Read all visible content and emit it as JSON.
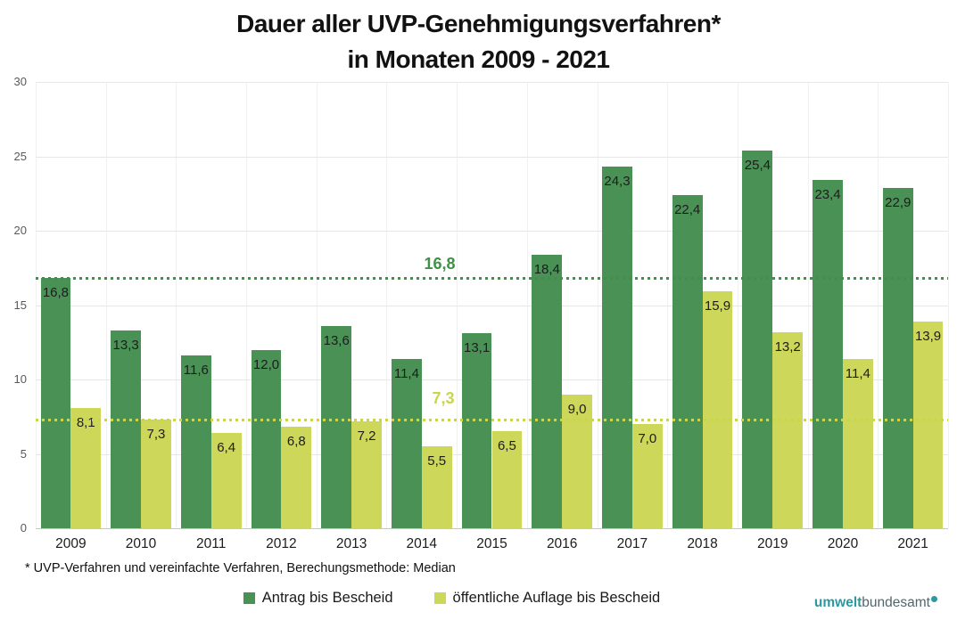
{
  "chart_data": {
    "type": "bar",
    "title_line1": "Dauer aller UVP-Genehmigungsverfahren*",
    "title_line2": "in Monaten 2009 - 2021",
    "categories": [
      2009,
      2010,
      2011,
      2012,
      2013,
      2014,
      2015,
      2016,
      2017,
      2018,
      2019,
      2020,
      2021
    ],
    "series": [
      {
        "name": "Antrag bis Bescheid",
        "color": "#4a9156",
        "values": [
          16.8,
          13.3,
          11.6,
          12.0,
          13.6,
          11.4,
          13.1,
          18.4,
          24.3,
          22.4,
          25.4,
          23.4,
          22.9
        ],
        "labels": [
          "16,8",
          "13,3",
          "11,6",
          "12,0",
          "13,6",
          "11,4",
          "13,1",
          "18,4",
          "24,3",
          "22,4",
          "25,4",
          "23,4",
          "22,9"
        ]
      },
      {
        "name": "öffentliche Auflage bis Bescheid",
        "color": "#cdd75a",
        "values": [
          8.1,
          7.3,
          6.4,
          6.8,
          7.2,
          5.5,
          6.5,
          9.0,
          7.0,
          15.9,
          13.2,
          11.4,
          13.9
        ],
        "labels": [
          "8,1",
          "7,3",
          "6,4",
          "6,8",
          "7,2",
          "5,5",
          "6,5",
          "9,0",
          "7,0",
          "15,9",
          "13,2",
          "11,4",
          "13,9"
        ]
      }
    ],
    "reference_lines": [
      {
        "value": 16.8,
        "label": "16,8",
        "color": "#3f9048"
      },
      {
        "value": 7.3,
        "label": "7,3",
        "color": "#c9d64b"
      }
    ],
    "y_axis": {
      "min": 0,
      "max": 30,
      "step": 5,
      "ticks": [
        "0",
        "5",
        "10",
        "15",
        "20",
        "25",
        "30"
      ]
    },
    "grid": true,
    "legend_position": "bottom",
    "footnote": "* UVP-Verfahren und vereinfachte Verfahren, Berechungsmethode: Median"
  },
  "logo": {
    "bold": "umwelt",
    "regular": "bundesamt"
  }
}
